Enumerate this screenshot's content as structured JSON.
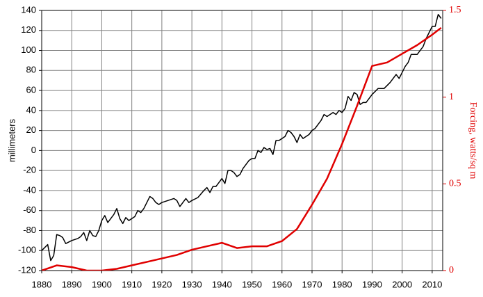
{
  "chart_data": {
    "type": "line",
    "ylabel": "millimeters",
    "y2label": "Forcing, watts/sq m",
    "xlim": [
      1880,
      2013.5
    ],
    "xticks": [
      1880,
      1890,
      1900,
      1910,
      1920,
      1930,
      1940,
      1950,
      1960,
      1970,
      1980,
      1990,
      2000,
      2010
    ],
    "ylim": [
      -120,
      140
    ],
    "yticks": [
      -120,
      -100,
      -80,
      -60,
      -40,
      -20,
      0,
      20,
      40,
      60,
      80,
      100,
      120,
      140
    ],
    "y2lim": [
      0,
      1.5
    ],
    "y2ticks": [
      0,
      0.5,
      1,
      1.5
    ],
    "grid": true,
    "series": [
      {
        "color": "#000000",
        "x": [
          1880,
          1881,
          1882,
          1883,
          1884,
          1885,
          1886,
          1887,
          1888,
          1890,
          1892,
          1893,
          1894,
          1895,
          1896,
          1897,
          1898,
          1899,
          1900,
          1901,
          1902,
          1903,
          1904,
          1905,
          1906,
          1907,
          1908,
          1909,
          1910,
          1911,
          1912,
          1913,
          1914,
          1915,
          1916,
          1917,
          1918,
          1919,
          1920,
          1922,
          1924,
          1925,
          1926,
          1927,
          1928,
          1929,
          1930,
          1932,
          1934,
          1935,
          1936,
          1937,
          1938,
          1939,
          1940,
          1941,
          1942,
          1943,
          1944,
          1945,
          1946,
          1947,
          1948,
          1949,
          1950,
          1951,
          1952,
          1953,
          1954,
          1955,
          1956,
          1957,
          1958,
          1959,
          1960,
          1961,
          1962,
          1963,
          1964,
          1965,
          1966,
          1967,
          1968,
          1969,
          1970,
          1971,
          1972,
          1973,
          1974,
          1975,
          1976,
          1977,
          1978,
          1979,
          1980,
          1981,
          1982,
          1983,
          1984,
          1985,
          1986,
          1987,
          1988,
          1990,
          1992,
          1994,
          1996,
          1998,
          1999,
          2000,
          2001,
          2002,
          2003,
          2004,
          2005,
          2006,
          2007,
          2008,
          2009,
          2010,
          2011,
          2012,
          2013
        ],
        "values": [
          -100,
          -97,
          -94,
          -110,
          -105,
          -84,
          -85,
          -87,
          -93,
          -90,
          -88,
          -86,
          -82,
          -90,
          -80,
          -85,
          -86,
          -80,
          -70,
          -65,
          -72,
          -68,
          -64,
          -58,
          -68,
          -73,
          -67,
          -70,
          -68,
          -66,
          -60,
          -62,
          -58,
          -52,
          -46,
          -48,
          -52,
          -54,
          -52,
          -50,
          -48,
          -50,
          -56,
          -52,
          -48,
          -52,
          -50,
          -47,
          -40,
          -37,
          -42,
          -36,
          -36,
          -32,
          -28,
          -33,
          -20,
          -20,
          -22,
          -26,
          -24,
          -18,
          -14,
          -10,
          -8,
          -8,
          0,
          -2,
          3,
          1,
          2,
          -4,
          10,
          10,
          12,
          14,
          20,
          18,
          14,
          8,
          16,
          12,
          14,
          16,
          20,
          22,
          26,
          30,
          36,
          34,
          36,
          38,
          36,
          40,
          38,
          42,
          54,
          50,
          58,
          56,
          46,
          48,
          48,
          56,
          62,
          62,
          68,
          76,
          72,
          78,
          84,
          88,
          96,
          96,
          96,
          100,
          104,
          112,
          118,
          124,
          124,
          136,
          132
        ]
      },
      {
        "color": "#e00000",
        "axis": "y2",
        "x": [
          1880,
          1885,
          1890,
          1895,
          1900,
          1905,
          1910,
          1915,
          1920,
          1925,
          1930,
          1935,
          1940,
          1945,
          1950,
          1955,
          1960,
          1965,
          1970,
          1975,
          1980,
          1985,
          1990,
          1995,
          2000,
          2005,
          2010,
          2013
        ],
        "values": [
          0,
          0.03,
          0.02,
          0,
          0,
          0.01,
          0.03,
          0.05,
          0.07,
          0.09,
          0.12,
          0.14,
          0.16,
          0.13,
          0.14,
          0.14,
          0.17,
          0.24,
          0.38,
          0.53,
          0.73,
          0.95,
          1.18,
          1.2,
          1.25,
          1.3,
          1.36,
          1.4
        ]
      }
    ]
  }
}
